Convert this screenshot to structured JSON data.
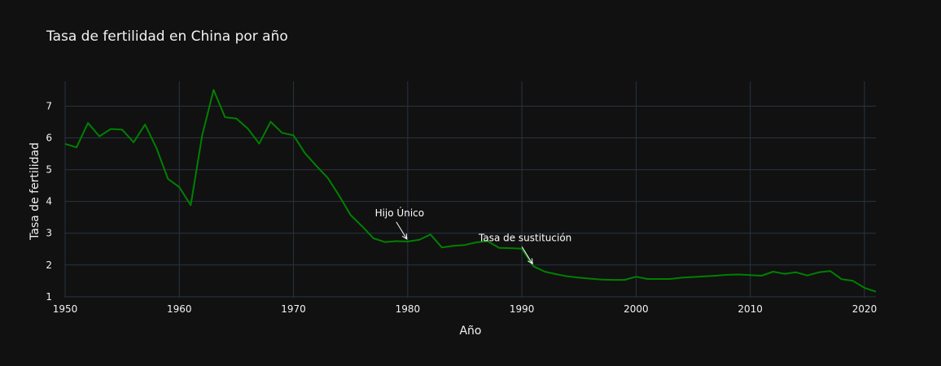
{
  "chart_data": {
    "type": "line",
    "title": "Tasa de fertilidad en China por año",
    "xlabel": "Año",
    "ylabel": "Tasa de fertilidad",
    "xlim": [
      1950,
      2021
    ],
    "ylim": [
      0.97,
      7.78
    ],
    "x_ticks": [
      1950,
      1960,
      1970,
      1980,
      1990,
      2000,
      2010,
      2020
    ],
    "y_ticks": [
      1,
      2,
      3,
      4,
      5,
      6,
      7
    ],
    "grid": true,
    "line_color": "#008000",
    "background": "#111111",
    "grid_color": "#283442",
    "series": [
      {
        "x": [
          1950,
          1951,
          1952,
          1953,
          1954,
          1955,
          1956,
          1957,
          1958,
          1959,
          1960,
          1961,
          1962,
          1963,
          1964,
          1965,
          1966,
          1967,
          1968,
          1969,
          1970,
          1971,
          1972,
          1973,
          1974,
          1975,
          1976,
          1977,
          1978,
          1979,
          1980,
          1981,
          1982,
          1983,
          1984,
          1985,
          1986,
          1987,
          1988,
          1989,
          1990,
          1991,
          1992,
          1993,
          1994,
          1995,
          1996,
          1997,
          1998,
          1999,
          2000,
          2001,
          2002,
          2003,
          2004,
          2005,
          2006,
          2007,
          2008,
          2009,
          2010,
          2011,
          2012,
          2013,
          2014,
          2015,
          2016,
          2017,
          2018,
          2019,
          2020,
          2021
        ],
        "values": [
          5.81,
          5.7,
          6.47,
          6.05,
          6.28,
          6.26,
          5.86,
          6.42,
          5.68,
          4.71,
          4.45,
          3.88,
          6.07,
          7.51,
          6.65,
          6.61,
          6.29,
          5.82,
          6.51,
          6.16,
          6.08,
          5.52,
          5.12,
          4.74,
          4.18,
          3.57,
          3.22,
          2.84,
          2.72,
          2.75,
          2.74,
          2.79,
          2.96,
          2.55,
          2.6,
          2.63,
          2.71,
          2.75,
          2.54,
          2.53,
          2.51,
          1.96,
          1.79,
          1.71,
          1.64,
          1.6,
          1.57,
          1.54,
          1.53,
          1.53,
          1.63,
          1.56,
          1.56,
          1.56,
          1.6,
          1.62,
          1.64,
          1.66,
          1.69,
          1.7,
          1.68,
          1.66,
          1.79,
          1.72,
          1.77,
          1.67,
          1.77,
          1.81,
          1.55,
          1.5,
          1.28,
          1.16
        ]
      }
    ],
    "annotations": [
      {
        "text": "Hijo Único",
        "x": 1980,
        "y": 2.74
      },
      {
        "text": "Tasa de sustitución",
        "x": 1991,
        "y": 1.96
      }
    ]
  }
}
